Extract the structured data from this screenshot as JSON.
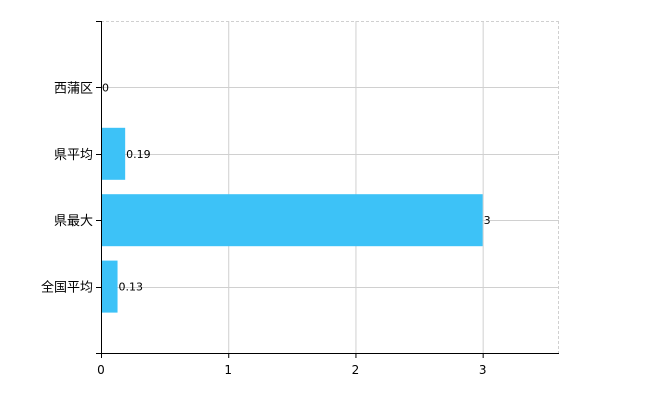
{
  "chart_data": {
    "type": "bar",
    "orientation": "horizontal",
    "categories": [
      "西蒲区",
      "県平均",
      "県最大",
      "全国平均"
    ],
    "values": [
      0,
      0.19,
      3,
      0.13
    ],
    "data_labels": [
      "0",
      "0.19",
      "3",
      "0.13"
    ],
    "title": "",
    "xlabel": "",
    "ylabel": "",
    "xlim": [
      0,
      3.6
    ],
    "xticks": [
      0,
      1,
      2,
      3
    ],
    "xtick_labels": [
      "0",
      "1",
      "2",
      "3"
    ],
    "grid": true,
    "bar_color": "#3dc2f7",
    "grid_color": "#d0d0d0"
  }
}
